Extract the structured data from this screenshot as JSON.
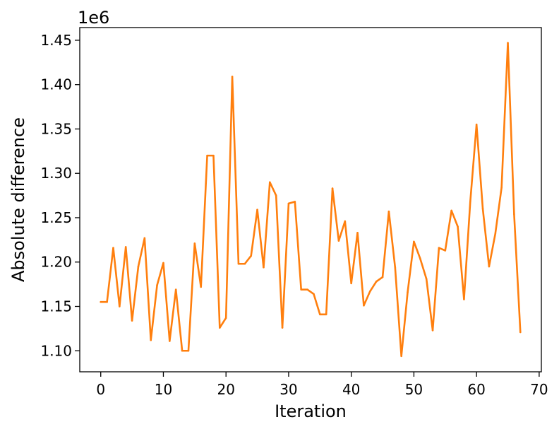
{
  "chart_data": {
    "type": "line",
    "xlabel": "Iteration",
    "ylabel": "Absolute difference",
    "y_multiplier_label": "1e6",
    "xlim": [
      -3.35,
      70.35
    ],
    "ylim": [
      1.0763,
      1.4643
    ],
    "x_ticks": [
      0,
      10,
      20,
      30,
      40,
      50,
      60,
      70
    ],
    "x_tick_labels": [
      "0",
      "10",
      "20",
      "30",
      "40",
      "50",
      "60",
      "70"
    ],
    "y_ticks": [
      1.1,
      1.15,
      1.2,
      1.25,
      1.3,
      1.35,
      1.4,
      1.45
    ],
    "y_tick_labels": [
      "1.10",
      "1.15",
      "1.20",
      "1.25",
      "1.30",
      "1.35",
      "1.40",
      "1.45"
    ],
    "grid": false,
    "series": [
      {
        "color": "#ff7f0e",
        "x": [
          0,
          1,
          2,
          3,
          4,
          5,
          6,
          7,
          8,
          9,
          10,
          11,
          12,
          13,
          14,
          15,
          16,
          17,
          18,
          19,
          20,
          21,
          22,
          23,
          24,
          25,
          26,
          27,
          28,
          29,
          30,
          31,
          32,
          33,
          34,
          35,
          36,
          37,
          38,
          39,
          40,
          41,
          42,
          43,
          44,
          45,
          46,
          47,
          48,
          49,
          50,
          51,
          52,
          53,
          54,
          55,
          56,
          57,
          58,
          59,
          60,
          61,
          62,
          63,
          64,
          65,
          66,
          67
        ],
        "values": [
          1.155,
          1.155,
          1.216,
          1.15,
          1.217,
          1.134,
          1.195,
          1.227,
          1.112,
          1.174,
          1.199,
          1.111,
          1.169,
          1.1,
          1.1,
          1.221,
          1.172,
          1.32,
          1.32,
          1.126,
          1.137,
          1.409,
          1.198,
          1.198,
          1.207,
          1.259,
          1.194,
          1.29,
          1.275,
          1.126,
          1.266,
          1.268,
          1.169,
          1.169,
          1.164,
          1.141,
          1.141,
          1.283,
          1.224,
          1.246,
          1.176,
          1.233,
          1.151,
          1.167,
          1.178,
          1.183,
          1.257,
          1.194,
          1.094,
          1.166,
          1.223,
          1.204,
          1.181,
          1.123,
          1.216,
          1.213,
          1.258,
          1.24,
          1.158,
          1.268,
          1.355,
          1.26,
          1.195,
          1.232,
          1.284,
          1.447,
          1.254,
          1.121
        ]
      }
    ]
  }
}
